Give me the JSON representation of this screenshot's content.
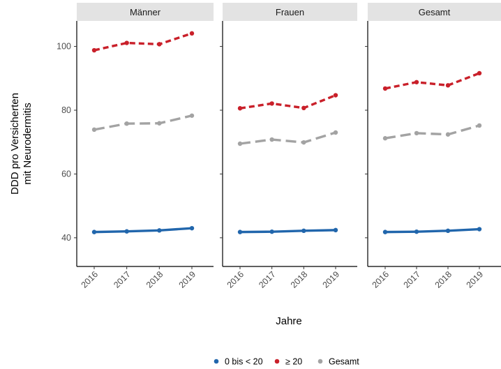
{
  "chart_data": {
    "type": "line",
    "facets": [
      "Männer",
      "Frauen",
      "Gesamt"
    ],
    "x": [
      "2016",
      "2017",
      "2018",
      "2019"
    ],
    "xlabel": "Jahre",
    "ylabel": [
      "DDD pro Versicherten",
      "mit Neurodermitis"
    ],
    "ylim": [
      31,
      108
    ],
    "yticks": [
      40,
      60,
      80,
      100
    ],
    "grid": false,
    "legend_position": "bottom",
    "series": [
      {
        "name": "0 bis < 20",
        "color": "#2166ac",
        "dash": "solid",
        "values": {
          "Männer": [
            41.8,
            42.0,
            42.3,
            43.0
          ],
          "Frauen": [
            41.8,
            41.9,
            42.2,
            42.4
          ],
          "Gesamt": [
            41.8,
            41.9,
            42.2,
            42.7
          ]
        }
      },
      {
        "name": "≥ 20",
        "color": "#c9202a",
        "dash": "dotted",
        "values": {
          "Männer": [
            98.8,
            101.1,
            100.7,
            104.1
          ],
          "Frauen": [
            80.6,
            82.1,
            80.7,
            84.7
          ],
          "Gesamt": [
            86.8,
            88.8,
            87.8,
            91.6
          ]
        }
      },
      {
        "name": "Gesamt",
        "color": "#a3a3a3",
        "dash": "dashed",
        "values": {
          "Männer": [
            73.9,
            75.8,
            75.9,
            78.3
          ],
          "Frauen": [
            69.5,
            70.8,
            69.9,
            73.0
          ],
          "Gesamt": [
            71.2,
            72.8,
            72.4,
            75.2
          ]
        }
      }
    ]
  }
}
